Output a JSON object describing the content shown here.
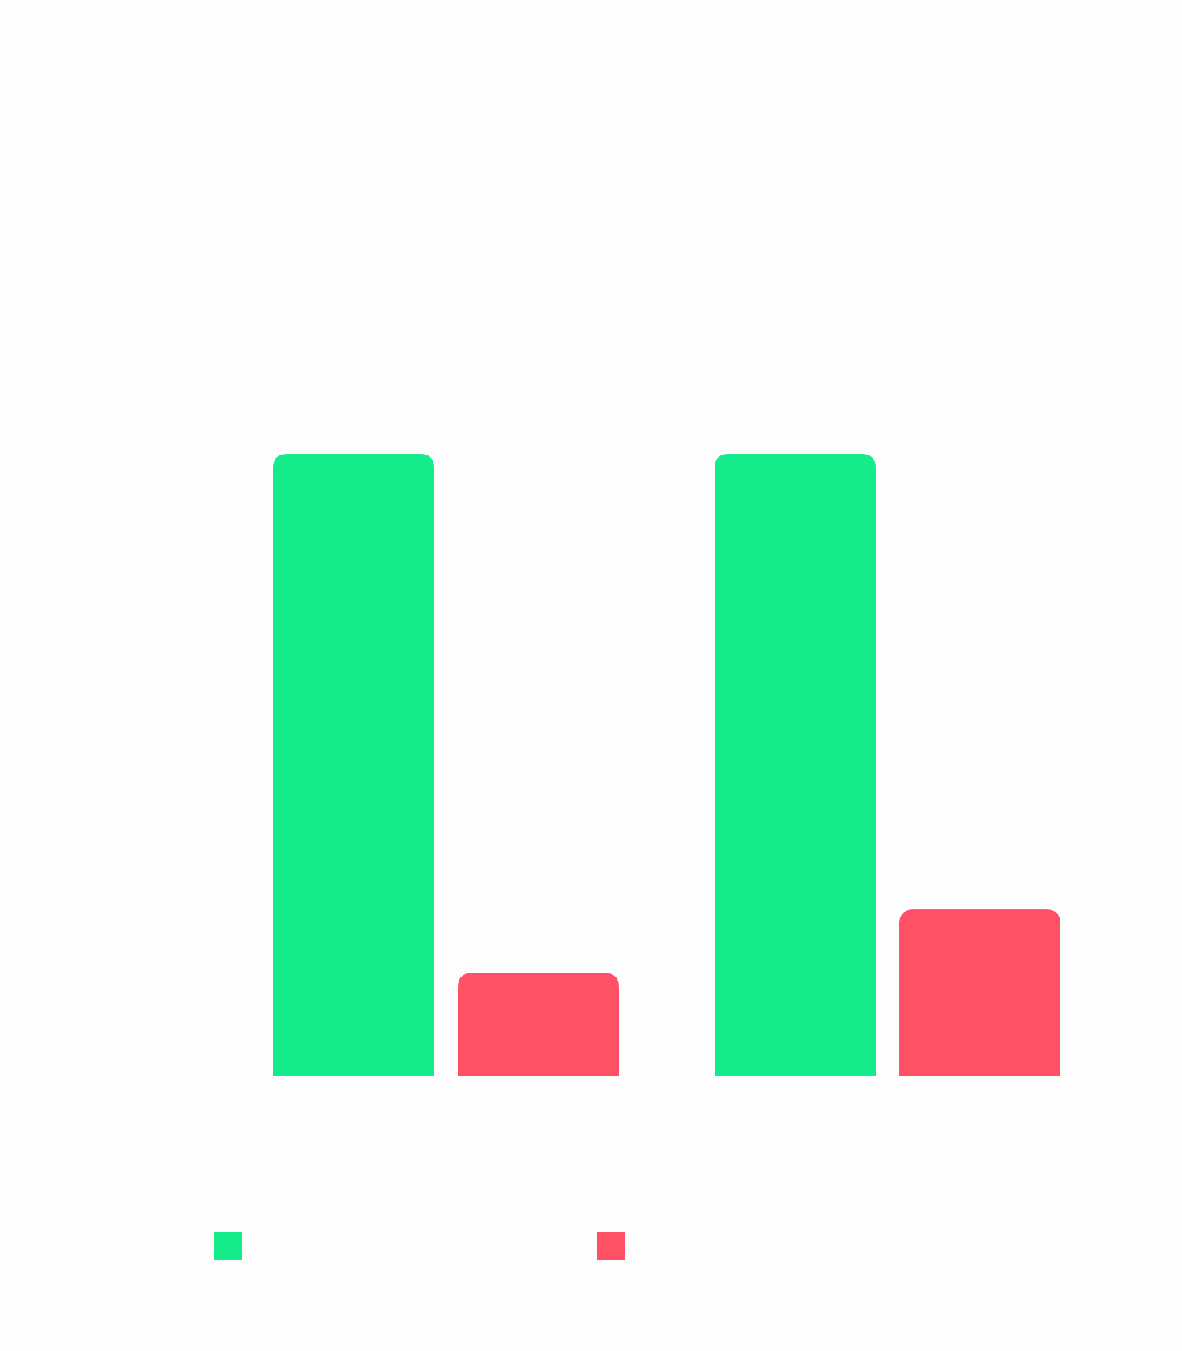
{
  "chart_data": {
    "type": "bar",
    "categories": [
      "",
      ""
    ],
    "series": [
      {
        "name": "",
        "color": "#14ec8c",
        "values": [
          100,
          100
        ]
      },
      {
        "name": "",
        "color": "#ff5066",
        "values": [
          16.6,
          26.8
        ]
      }
    ],
    "ylim": [
      0,
      100
    ],
    "grid": false,
    "legend": "bottom",
    "title": "",
    "xlabel": "",
    "ylabel": ""
  }
}
